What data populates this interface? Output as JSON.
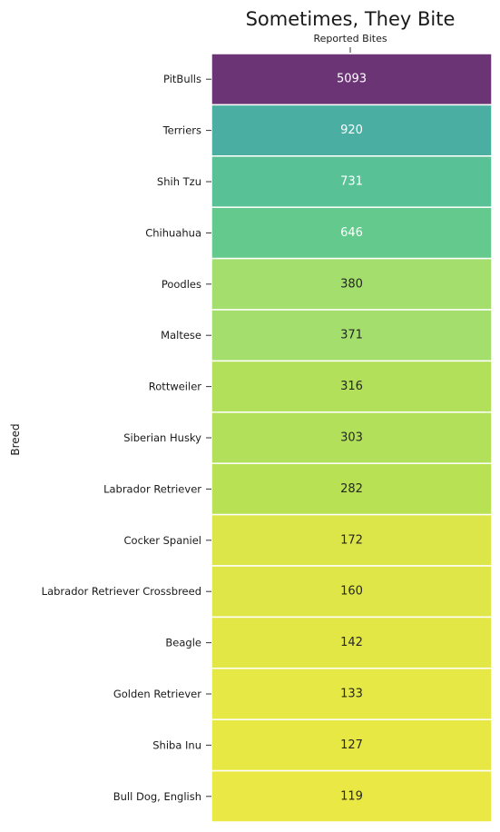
{
  "chart_data": {
    "type": "heatmap",
    "title": "Sometimes, They Bite",
    "column_label": "Reported Bites",
    "ylabel": "Breed",
    "colormap": "viridis",
    "color_range": [
      119,
      5093
    ],
    "colorbar": false,
    "grid": false,
    "categories": [
      "PitBulls",
      "Terriers",
      "Shih Tzu",
      "Chihuahua",
      "Poodles",
      "Maltese",
      "Rottweiler",
      "Siberian Husky",
      "Labrador Retriever",
      "Cocker Spaniel",
      "Labrador Retriever Crossbreed",
      "Beagle",
      "Golden Retriever",
      "Shiba Inu",
      "Bull Dog, English"
    ],
    "values": [
      5093,
      920,
      731,
      646,
      380,
      371,
      316,
      303,
      282,
      172,
      160,
      142,
      133,
      127,
      119
    ],
    "cell_colors": [
      "#6a3475",
      "#4aaea2",
      "#58c296",
      "#64c98c",
      "#a4de6c",
      "#a4de6c",
      "#b3e05a",
      "#b3e05a",
      "#b8e153",
      "#dde649",
      "#dfe748",
      "#e3e746",
      "#e6e845",
      "#e8e844",
      "#eae844"
    ],
    "label_colors": {
      "dark_cells": "#ffffff",
      "light_cells": "#262626"
    }
  }
}
